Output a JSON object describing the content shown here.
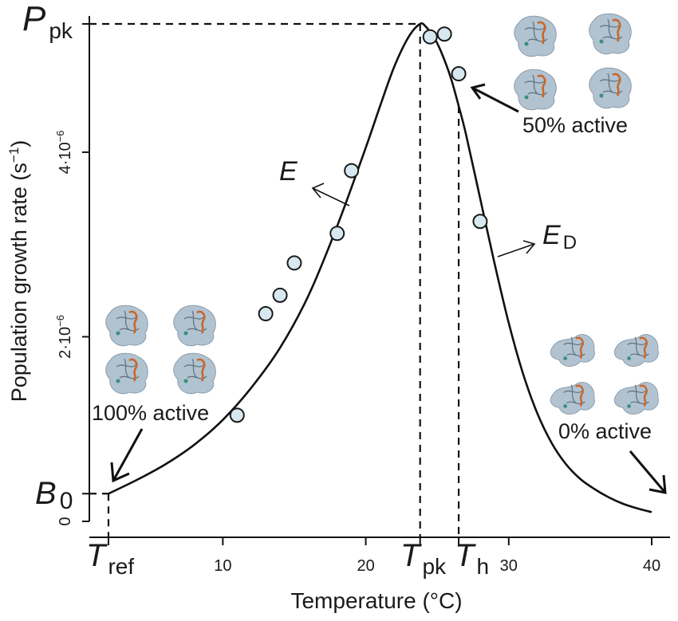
{
  "chart_data": {
    "type": "scatter",
    "xlabel": "Temperature (°C)",
    "ylabel_main": "Population growth rate (s",
    "ylabel_sup": "−1",
    "ylabel_close": ")",
    "xlim": [
      1.9,
      41.5
    ],
    "ylim": [
      -0.05,
      5.45
    ],
    "x_ticks": [
      {
        "value": 10,
        "label": "10"
      },
      {
        "value": 20,
        "label": "20"
      },
      {
        "value": 30,
        "label": "30"
      },
      {
        "value": 40,
        "label": "40"
      }
    ],
    "y_ticks": [
      {
        "value": 0,
        "label": "0",
        "sup": ""
      },
      {
        "value": 2,
        "label": "2·10",
        "sup": "−6"
      },
      {
        "value": 4,
        "label": "4·10",
        "sup": "−6"
      }
    ],
    "y_units_note": "×10⁻⁶ s⁻¹",
    "points": [
      {
        "x": 11.0,
        "y": 1.15
      },
      {
        "x": 13.0,
        "y": 2.25
      },
      {
        "x": 14.0,
        "y": 2.45
      },
      {
        "x": 15.0,
        "y": 2.8
      },
      {
        "x": 18.0,
        "y": 3.12
      },
      {
        "x": 19.0,
        "y": 3.8
      },
      {
        "x": 24.5,
        "y": 5.25
      },
      {
        "x": 25.5,
        "y": 5.28
      },
      {
        "x": 26.5,
        "y": 4.85
      },
      {
        "x": 28.0,
        "y": 3.25
      }
    ],
    "curve": {
      "x": [
        2.0,
        4.0,
        6.0,
        8.0,
        10.0,
        12.0,
        14.0,
        16.0,
        18.0,
        20.0,
        21.0,
        22.0,
        23.0,
        23.8,
        24.2,
        24.6,
        25.0,
        25.5,
        26.0,
        26.5,
        27.0,
        28.0,
        29.0,
        30.0,
        31.0,
        32.0,
        33.0,
        34.0,
        35.0,
        36.0,
        37.0,
        38.0,
        39.0,
        40.0
      ],
      "y": [
        0.3,
        0.45,
        0.62,
        0.83,
        1.1,
        1.45,
        1.88,
        2.45,
        3.2,
        4.05,
        4.5,
        4.93,
        5.25,
        5.39,
        5.36,
        5.28,
        5.18,
        5.0,
        4.78,
        4.5,
        4.2,
        3.5,
        2.8,
        2.15,
        1.6,
        1.17,
        0.85,
        0.62,
        0.46,
        0.35,
        0.26,
        0.19,
        0.14,
        0.1
      ]
    },
    "guides": {
      "T_ref": 2.0,
      "T_pk": 23.8,
      "T_h": 26.5,
      "P_pk": 5.39,
      "B_0": 0.3
    },
    "labels": {
      "P_pk_main": "P",
      "P_pk_sub": "pk",
      "B_0_main": "B",
      "B_0_sub": "0",
      "T_ref_main": "T",
      "T_ref_sub": "ref",
      "T_pk_main": "T",
      "T_pk_sub": "pk",
      "T_h_main": "T",
      "T_h_sub": "h",
      "E_main": "E",
      "E_D_main": "E",
      "E_D_sub": "D"
    },
    "annotations": {
      "active_100": "100% active",
      "active_50": "50% active",
      "active_0": "0% active"
    },
    "colors": {
      "point_fill": "#d8e8f0",
      "point_stroke": "#1a1a1a",
      "line": "#111111",
      "protein_body": "#a9bccb",
      "protein_accent": "#c8672a"
    }
  }
}
